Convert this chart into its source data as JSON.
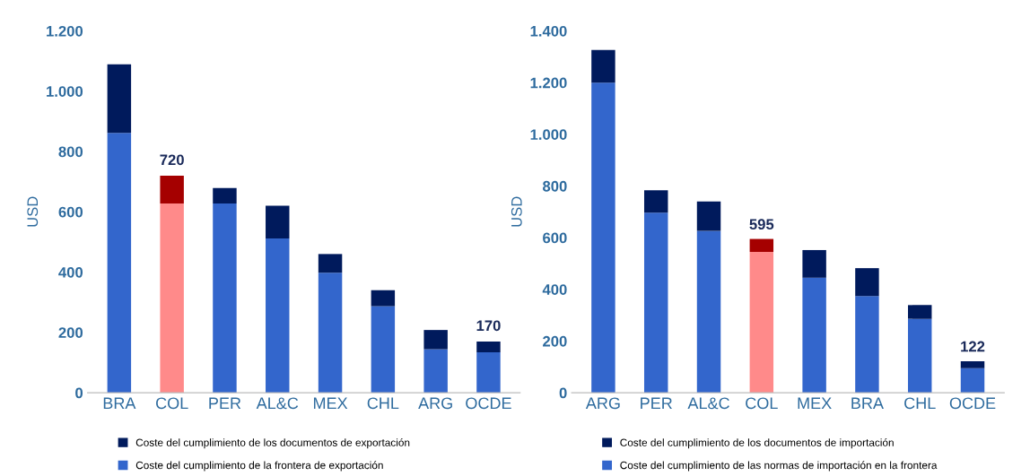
{
  "chart_data": [
    {
      "type": "bar",
      "stacked": true,
      "ylabel": "USD",
      "categories": [
        "BRA",
        "COL",
        "PER",
        "AL&C",
        "MEX",
        "CHL",
        "ARG",
        "OCDE"
      ],
      "series": [
        {
          "name": "Coste del cumplimiento de la frontera de exportación",
          "color": "#3366cc",
          "colors": [
            "#3366cc",
            "#ff8a8a",
            "#3366cc",
            "#3366cc",
            "#3366cc",
            "#3366cc",
            "#3366cc",
            "#3366cc"
          ],
          "values": [
            862,
            628,
            628,
            512,
            398,
            287,
            144,
            134
          ]
        },
        {
          "name": "Coste del cumplimiento de los documentos de exportación",
          "color": "#001a5c",
          "colors": [
            "#001a5c",
            "#a50000",
            "#001a5c",
            "#001a5c",
            "#001a5c",
            "#001a5c",
            "#001a5c",
            "#001a5c"
          ],
          "values": [
            227,
            92,
            51,
            108,
            62,
            53,
            64,
            36
          ]
        }
      ],
      "totals": [
        null,
        "720",
        null,
        null,
        null,
        null,
        null,
        "170"
      ],
      "ylim": [
        0,
        1200
      ],
      "yticks": [
        0,
        {
          "value": 200,
          "label": "200"
        },
        {
          "value": 400,
          "label": "400"
        },
        {
          "value": 600,
          "label": "600"
        },
        {
          "value": 800,
          "label": "800"
        },
        {
          "value": 1000,
          "label": "1.000"
        },
        {
          "value": 1200,
          "label": "1.200"
        }
      ],
      "grid": false,
      "legend": "bottom"
    },
    {
      "type": "bar",
      "stacked": true,
      "ylabel": "USD",
      "categories": [
        "ARG",
        "PER",
        "AL&C",
        "COL",
        "MEX",
        "BRA",
        "CHL",
        "OCDE"
      ],
      "series": [
        {
          "name": "Coste del cumplimiento de las normas de importación en la frontera",
          "color": "#3366cc",
          "colors": [
            "#3366cc",
            "#3366cc",
            "#3366cc",
            "#ff8a8a",
            "#3366cc",
            "#3366cc",
            "#3366cc",
            "#3366cc"
          ],
          "values": [
            1200,
            697,
            626,
            545,
            445,
            374,
            286,
            95
          ]
        },
        {
          "name": "Coste del cumplimiento de los documentos de importación",
          "color": "#001a5c",
          "colors": [
            "#001a5c",
            "#001a5c",
            "#001a5c",
            "#a50000",
            "#001a5c",
            "#001a5c",
            "#001a5c",
            "#001a5c"
          ],
          "values": [
            126,
            86,
            114,
            50,
            107,
            108,
            53,
            27
          ]
        }
      ],
      "totals": [
        null,
        null,
        null,
        "595",
        null,
        null,
        null,
        "122"
      ],
      "ylim": [
        0,
        1400
      ],
      "yticks": [
        0,
        {
          "value": 200,
          "label": "200"
        },
        {
          "value": 400,
          "label": "400"
        },
        {
          "value": 600,
          "label": "600"
        },
        {
          "value": 800,
          "label": "800"
        },
        {
          "value": 1000,
          "label": "1.000"
        },
        {
          "value": 1200,
          "label": "1.200"
        },
        {
          "value": 1400,
          "label": "1.400"
        }
      ],
      "grid": false,
      "legend": "bottom"
    }
  ]
}
